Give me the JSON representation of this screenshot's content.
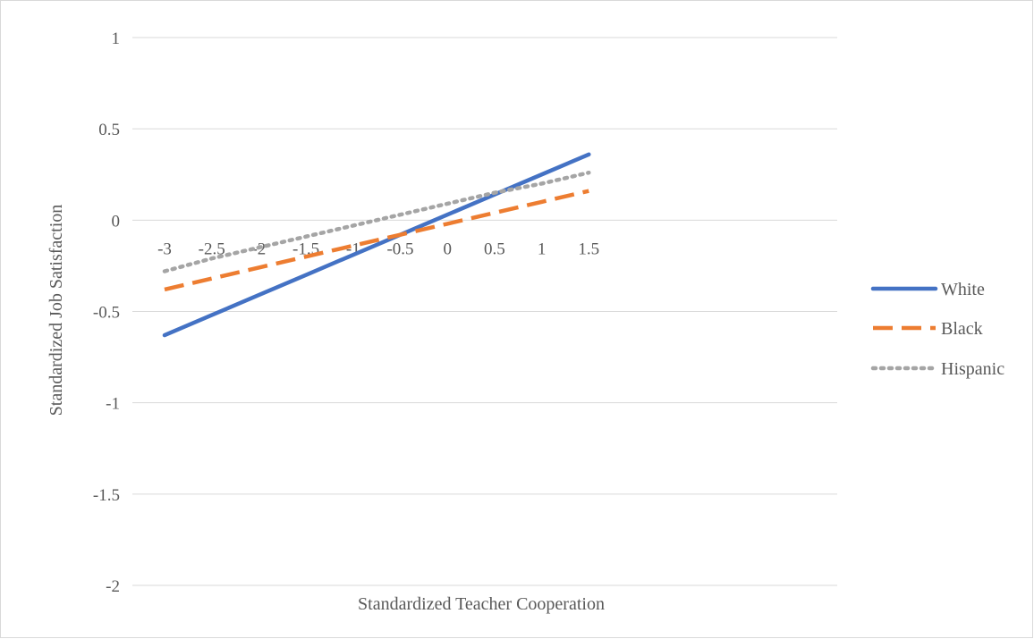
{
  "chart_data": {
    "type": "line",
    "title": "",
    "xlabel": "Standardized Teacher Cooperation",
    "ylabel": "Standardized Job Satisfaction",
    "x": [
      -3,
      -2.5,
      -2,
      -1.5,
      -1,
      -0.5,
      0,
      0.5,
      1,
      1.5
    ],
    "x_tick_labels": [
      "-3",
      "-2.5",
      "-2",
      "-1.5",
      "-1",
      "-0.5",
      "0",
      "0.5",
      "1",
      "1.5"
    ],
    "y_ticks": [
      1,
      0.5,
      0,
      -0.5,
      -1,
      -1.5,
      -2
    ],
    "y_tick_labels": [
      "1",
      "0.5",
      "0",
      "-0.5",
      "-1",
      "-1.5",
      "-2"
    ],
    "ylim": [
      -2,
      1
    ],
    "grid": true,
    "legend_position": "right",
    "series": [
      {
        "name": "White",
        "color": "#4472c4",
        "style": "solid",
        "values": [
          -0.63,
          -0.52,
          -0.41,
          -0.3,
          -0.19,
          -0.08,
          0.03,
          0.14,
          0.25,
          0.36
        ]
      },
      {
        "name": "Black",
        "color": "#ed7d31",
        "style": "dashed",
        "values": [
          -0.38,
          -0.32,
          -0.26,
          -0.2,
          -0.14,
          -0.08,
          -0.02,
          0.04,
          0.1,
          0.16
        ]
      },
      {
        "name": "Hispanic",
        "color": "#a5a5a5",
        "style": "dotted",
        "values": [
          -0.28,
          -0.21,
          -0.15,
          -0.09,
          -0.03,
          0.03,
          0.09,
          0.15,
          0.2,
          0.26
        ]
      }
    ]
  }
}
